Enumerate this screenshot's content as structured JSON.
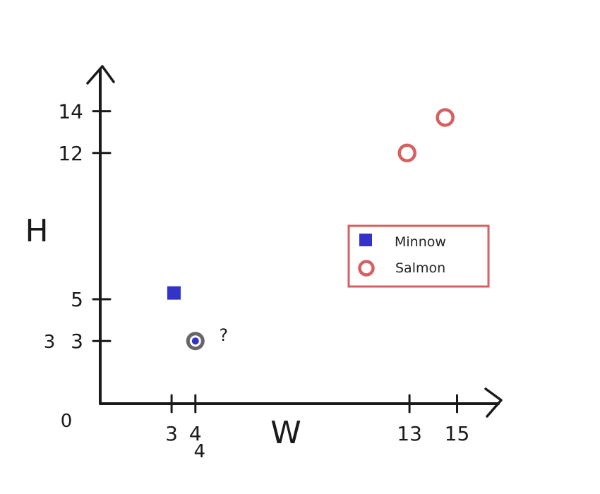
{
  "chart_data": {
    "type": "scatter",
    "xlabel": "W",
    "ylabel": "H",
    "origin_label": "0",
    "x_ticks": [
      3,
      4,
      13,
      15
    ],
    "y_ticks": [
      3,
      5,
      12,
      14
    ],
    "xlim": [
      0,
      19.6
    ],
    "ylim": [
      0,
      15.9
    ],
    "legend_position": "right-middle",
    "series": [
      {
        "name": "Minnow",
        "marker": "square",
        "color": "#3333cc",
        "points": [
          [
            3.1,
            5.3
          ]
        ]
      },
      {
        "name": "Salmon",
        "marker": "open-circle",
        "color": "#d75f5f",
        "points": [
          [
            12.9,
            12.0
          ],
          [
            14.5,
            13.7
          ]
        ]
      }
    ],
    "query_point": {
      "x": 4,
      "y": 3,
      "label": "?",
      "ring_color": "#666666",
      "dot_color": "#3333cc"
    },
    "annotations": [
      {
        "text": "3",
        "near": "y-tick-3",
        "color": "#c9b3b3"
      },
      {
        "text": "4",
        "near": "x-tick-4",
        "color": "#c9b3b3"
      }
    ]
  }
}
